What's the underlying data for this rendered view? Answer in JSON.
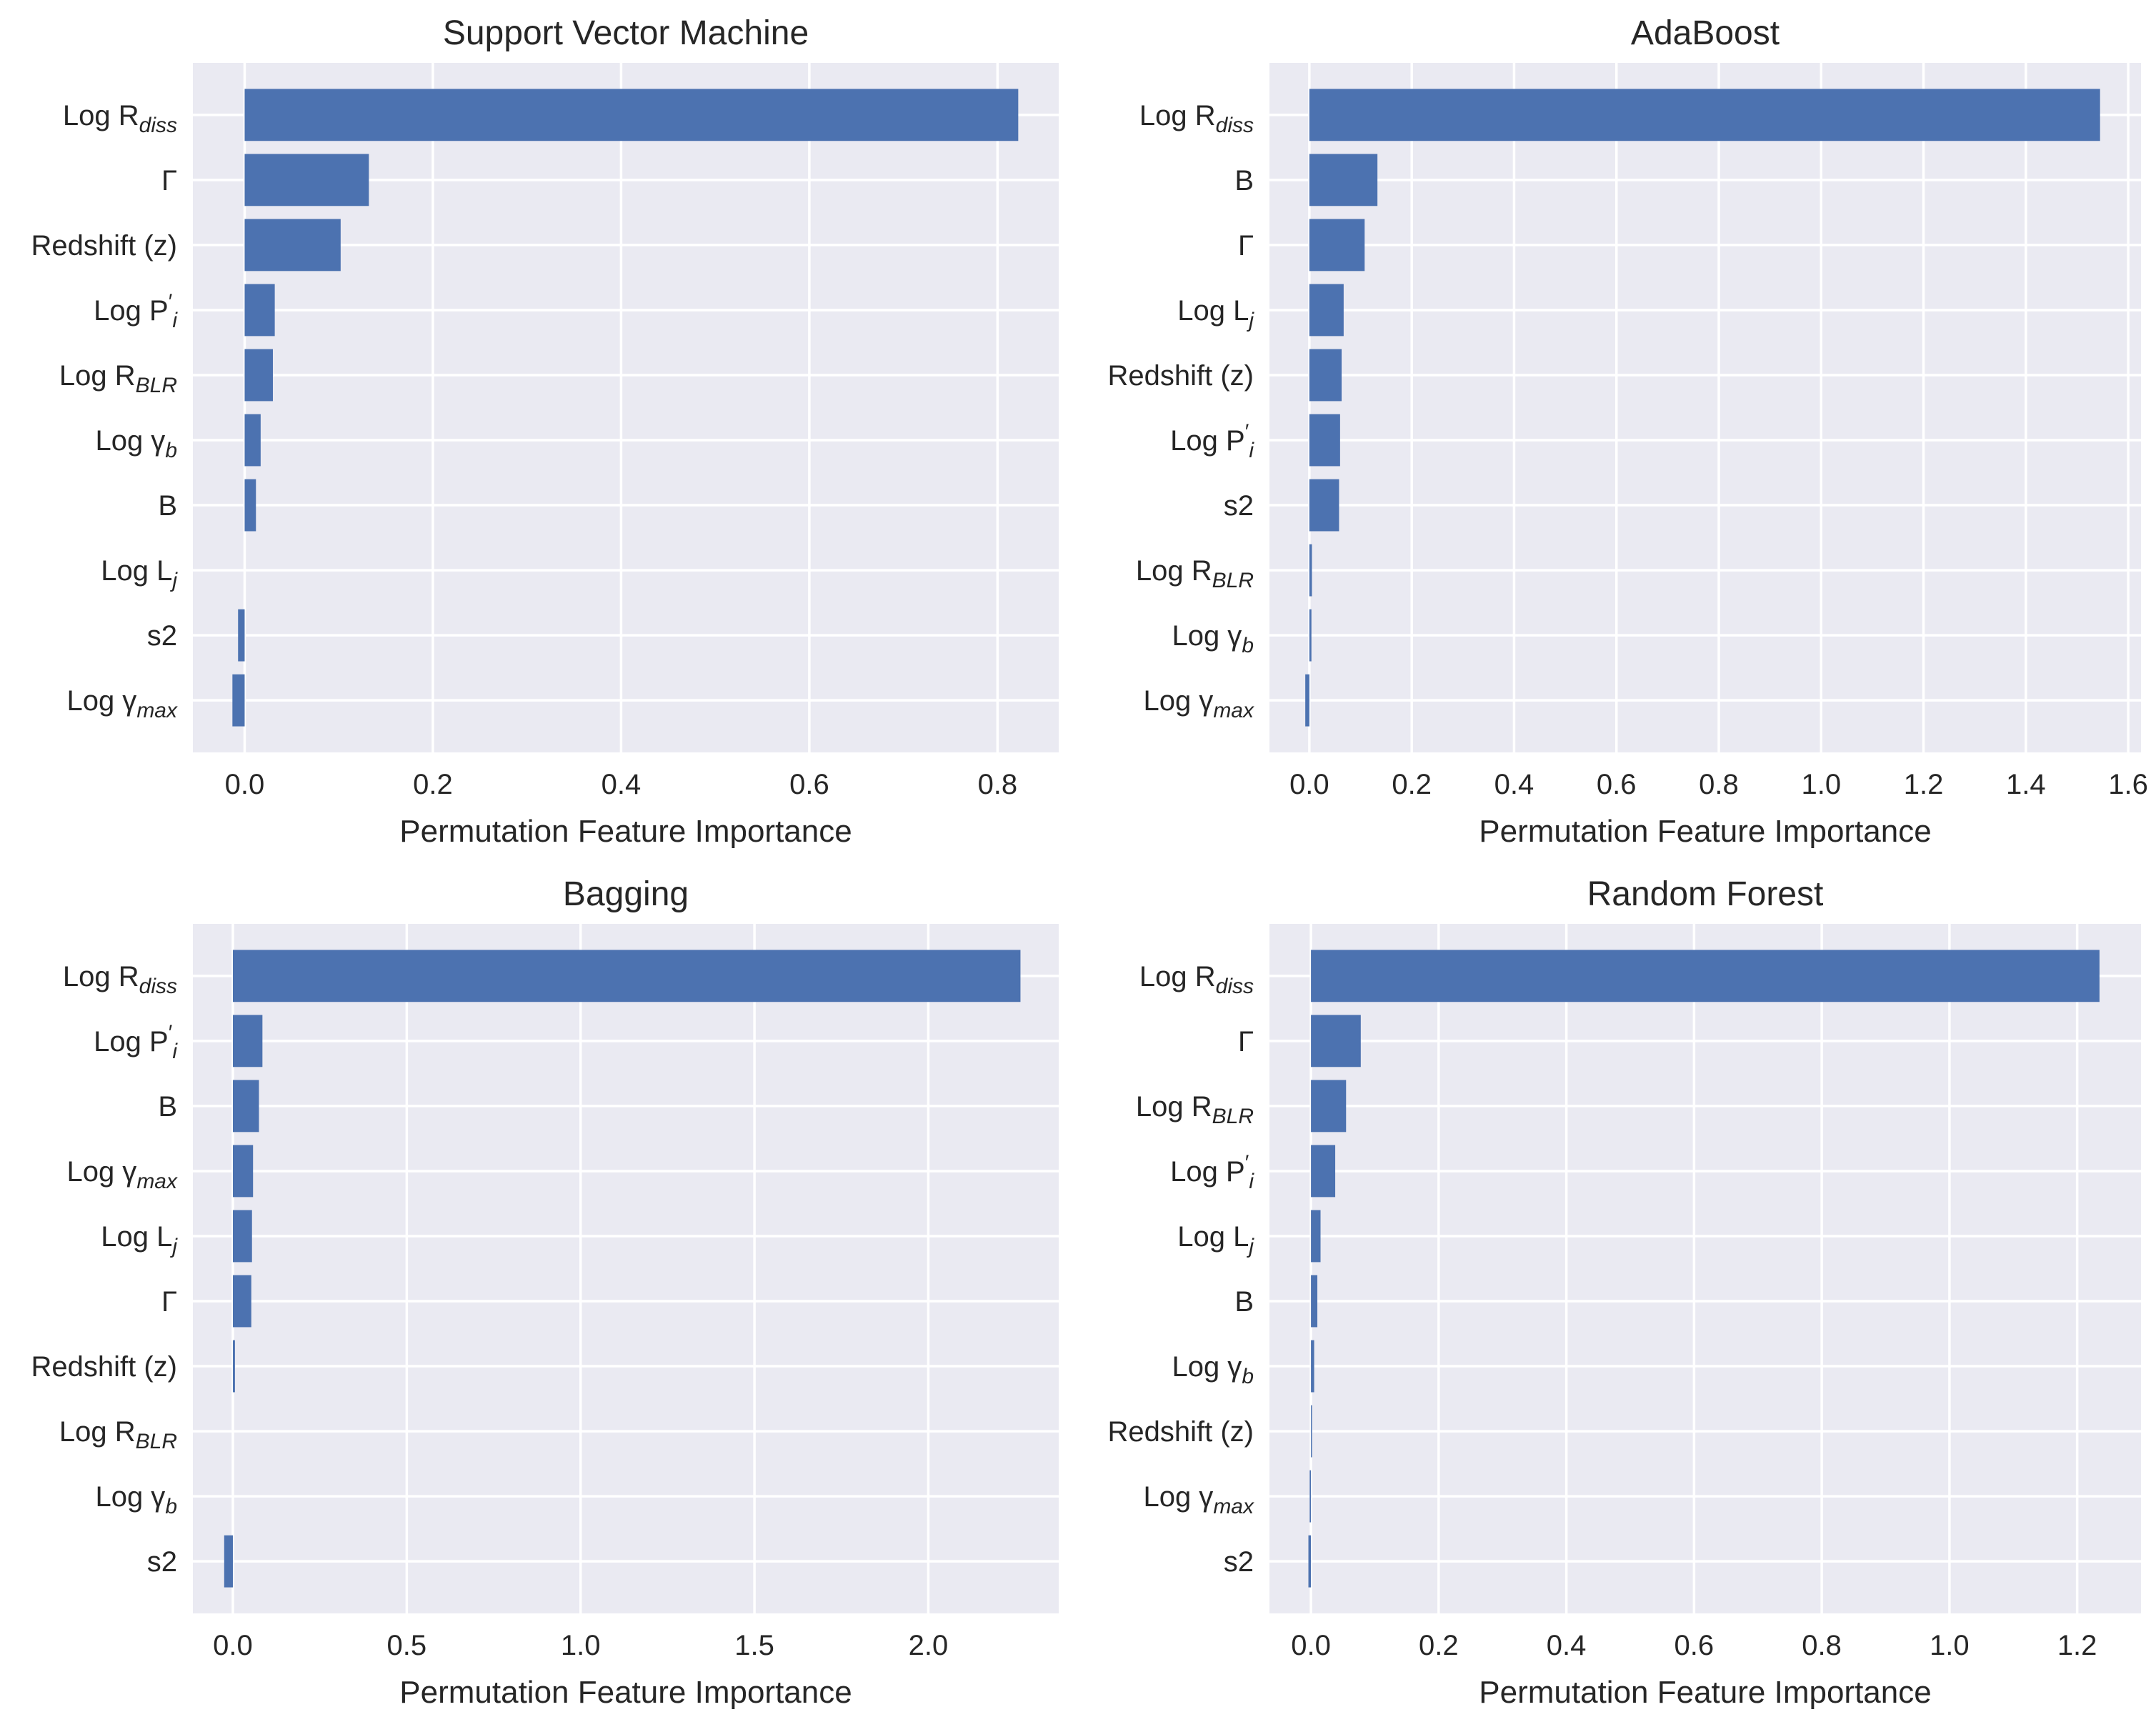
{
  "figure": {
    "color_bar": "#4c72b0",
    "color_plot_background": "#eaeaf2"
  },
  "chart_data": [
    {
      "type": "bar",
      "orientation": "horizontal",
      "title": "Support Vector Machine",
      "xlabel": "Permutation Feature Importance",
      "ylabel": "",
      "xlim": [
        -0.055,
        0.865
      ],
      "xticks": [
        0.0,
        0.2,
        0.4,
        0.6,
        0.8
      ],
      "xtick_labels": [
        "0.0",
        "0.2",
        "0.4",
        "0.6",
        "0.8"
      ],
      "grid": true,
      "categories": [
        {
          "pre": "Log R",
          "sub": "diss"
        },
        {
          "pre": "Γ",
          "sub": ""
        },
        {
          "pre": "Redshift (z)",
          "sub": ""
        },
        {
          "pre": "Log P",
          "sup": "′",
          "sub": "i"
        },
        {
          "pre": "Log R",
          "sub": "BLR"
        },
        {
          "pre": "Log γ",
          "sub": "b"
        },
        {
          "pre": "B",
          "sub": ""
        },
        {
          "pre": "Log L",
          "sub": "j"
        },
        {
          "pre": "s2",
          "sub": ""
        },
        {
          "pre": "Log γ",
          "sub": "max"
        }
      ],
      "values": [
        0.822,
        0.132,
        0.102,
        0.032,
        0.03,
        0.017,
        0.012,
        0.0,
        -0.007,
        -0.013
      ]
    },
    {
      "type": "bar",
      "orientation": "horizontal",
      "title": "AdaBoost",
      "xlabel": "Permutation Feature Importance",
      "ylabel": "",
      "xlim": [
        -0.078,
        1.625
      ],
      "xticks": [
        0.0,
        0.2,
        0.4,
        0.6,
        0.8,
        1.0,
        1.2,
        1.4,
        1.6
      ],
      "xtick_labels": [
        "0.0",
        "0.2",
        "0.4",
        "0.6",
        "0.8",
        "1.0",
        "1.2",
        "1.4",
        "1.6"
      ],
      "grid": true,
      "categories": [
        {
          "pre": "Log R",
          "sub": "diss"
        },
        {
          "pre": "B",
          "sub": ""
        },
        {
          "pre": "Γ",
          "sub": ""
        },
        {
          "pre": "Log L",
          "sub": "j"
        },
        {
          "pre": "Redshift (z)",
          "sub": ""
        },
        {
          "pre": "Log P",
          "sup": "′",
          "sub": "i"
        },
        {
          "pre": "s2",
          "sub": ""
        },
        {
          "pre": "Log R",
          "sub": "BLR"
        },
        {
          "pre": "Log γ",
          "sub": "b"
        },
        {
          "pre": "Log γ",
          "sub": "max"
        }
      ],
      "values": [
        1.545,
        0.133,
        0.108,
        0.067,
        0.063,
        0.06,
        0.058,
        0.005,
        0.004,
        -0.008
      ]
    },
    {
      "type": "bar",
      "orientation": "horizontal",
      "title": "Bagging",
      "xlabel": "Permutation Feature Importance",
      "ylabel": "",
      "xlim": [
        -0.115,
        2.375
      ],
      "xticks": [
        0.0,
        0.5,
        1.0,
        1.5,
        2.0
      ],
      "xtick_labels": [
        "0.0",
        "0.5",
        "1.0",
        "1.5",
        "2.0"
      ],
      "grid": true,
      "categories": [
        {
          "pre": "Log R",
          "sub": "diss"
        },
        {
          "pre": "Log P",
          "sup": "′",
          "sub": "i"
        },
        {
          "pre": "B",
          "sub": ""
        },
        {
          "pre": "Log γ",
          "sub": "max"
        },
        {
          "pre": "Log L",
          "sub": "j"
        },
        {
          "pre": "Γ",
          "sub": ""
        },
        {
          "pre": "Redshift (z)",
          "sub": ""
        },
        {
          "pre": "Log R",
          "sub": "BLR"
        },
        {
          "pre": "Log γ",
          "sub": "b"
        },
        {
          "pre": "s2",
          "sub": ""
        }
      ],
      "values": [
        2.265,
        0.085,
        0.075,
        0.058,
        0.055,
        0.053,
        0.006,
        0.0,
        0.0,
        -0.025
      ]
    },
    {
      "type": "bar",
      "orientation": "horizontal",
      "title": "Random Forest",
      "xlabel": "Permutation Feature Importance",
      "ylabel": "",
      "xlim": [
        -0.065,
        1.3
      ],
      "xticks": [
        0.0,
        0.2,
        0.4,
        0.6,
        0.8,
        1.0,
        1.2
      ],
      "xtick_labels": [
        "0.0",
        "0.2",
        "0.4",
        "0.6",
        "0.8",
        "1.0",
        "1.2"
      ],
      "grid": true,
      "categories": [
        {
          "pre": "Log R",
          "sub": "diss"
        },
        {
          "pre": "Γ",
          "sub": ""
        },
        {
          "pre": "Log R",
          "sub": "BLR"
        },
        {
          "pre": "Log P",
          "sup": "′",
          "sub": "i"
        },
        {
          "pre": "Log L",
          "sub": "j"
        },
        {
          "pre": "B",
          "sub": ""
        },
        {
          "pre": "Log γ",
          "sub": "b"
        },
        {
          "pre": "Redshift (z)",
          "sub": ""
        },
        {
          "pre": "Log γ",
          "sub": "max"
        },
        {
          "pre": "s2",
          "sub": ""
        }
      ],
      "values": [
        1.235,
        0.078,
        0.055,
        0.038,
        0.015,
        0.01,
        0.005,
        0.001,
        -0.002,
        -0.004
      ]
    }
  ]
}
